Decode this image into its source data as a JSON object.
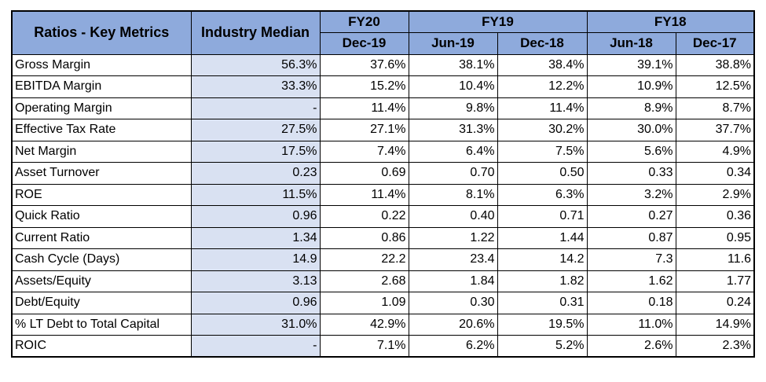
{
  "table": {
    "header": {
      "metric_col": "Ratios - Key Metrics",
      "median_col": "Industry Median",
      "groups": [
        {
          "label": "FY20",
          "span": 1
        },
        {
          "label": "FY19",
          "span": 2
        },
        {
          "label": "FY18",
          "span": 2
        }
      ],
      "periods": [
        "Dec-19",
        "Jun-19",
        "Dec-18",
        "Jun-18",
        "Dec-17"
      ]
    },
    "rows": [
      {
        "label": "Gross Margin",
        "median": "56.3%",
        "values": [
          "37.6%",
          "38.1%",
          "38.4%",
          "39.1%",
          "38.8%"
        ]
      },
      {
        "label": "EBITDA Margin",
        "median": "33.3%",
        "values": [
          "15.2%",
          "10.4%",
          "12.2%",
          "10.9%",
          "12.5%"
        ]
      },
      {
        "label": "Operating Margin",
        "median": "-",
        "values": [
          "11.4%",
          "9.8%",
          "11.4%",
          "8.9%",
          "8.7%"
        ]
      },
      {
        "label": "Effective Tax Rate",
        "median": "27.5%",
        "values": [
          "27.1%",
          "31.3%",
          "30.2%",
          "30.0%",
          "37.7%"
        ]
      },
      {
        "label": "Net Margin",
        "median": "17.5%",
        "values": [
          "7.4%",
          "6.4%",
          "7.5%",
          "5.6%",
          "4.9%"
        ]
      },
      {
        "label": "Asset Turnover",
        "median": "0.23",
        "values": [
          "0.69",
          "0.70",
          "0.50",
          "0.33",
          "0.34"
        ]
      },
      {
        "label": "ROE",
        "median": "11.5%",
        "values": [
          "11.4%",
          "8.1%",
          "6.3%",
          "3.2%",
          "2.9%"
        ]
      },
      {
        "label": "Quick Ratio",
        "median": "0.96",
        "values": [
          "0.22",
          "0.40",
          "0.71",
          "0.27",
          "0.36"
        ]
      },
      {
        "label": "Current Ratio",
        "median": "1.34",
        "values": [
          "0.86",
          "1.22",
          "1.44",
          "0.87",
          "0.95"
        ]
      },
      {
        "label": "Cash Cycle (Days)",
        "median": "14.9",
        "values": [
          "22.2",
          "23.4",
          "14.2",
          "7.3",
          "11.6"
        ]
      },
      {
        "label": "Assets/Equity",
        "median": "3.13",
        "values": [
          "2.68",
          "1.84",
          "1.82",
          "1.62",
          "1.77"
        ]
      },
      {
        "label": "Debt/Equity",
        "median": "0.96",
        "values": [
          "1.09",
          "0.30",
          "0.31",
          "0.18",
          "0.24"
        ]
      },
      {
        "label": "% LT Debt to Total Capital",
        "median": "31.0%",
        "values": [
          "42.9%",
          "20.6%",
          "19.5%",
          "11.0%",
          "14.9%"
        ]
      },
      {
        "label": "ROIC",
        "median": "-",
        "values": [
          "7.1%",
          "6.2%",
          "5.2%",
          "2.6%",
          "2.3%"
        ]
      }
    ]
  },
  "colors": {
    "header_bg": "#8eaadc",
    "median_bg": "#d9e1f2",
    "border": "#000000"
  }
}
